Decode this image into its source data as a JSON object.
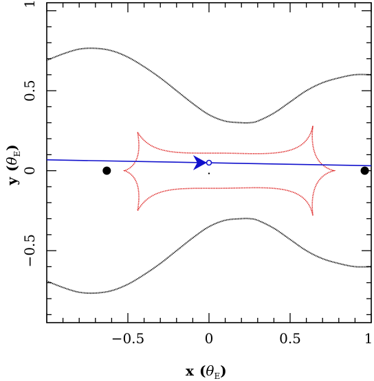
{
  "chart_data": {
    "type": "scatter",
    "xlabel": "x",
    "xlabel_unit": "θ",
    "xlabel_unit_sub": "E",
    "ylabel": "y",
    "ylabel_unit": "θ",
    "ylabel_unit_sub": "E",
    "xlim": [
      -1.0,
      1.0
    ],
    "ylim": [
      -0.95,
      1.05
    ],
    "x_ticks": [
      -0.5,
      0,
      0.5,
      1
    ],
    "x_tick_labels": [
      "−0.5",
      "0",
      "0.5",
      "1"
    ],
    "y_ticks": [
      -0.5,
      0,
      0.5,
      1
    ],
    "y_tick_labels": [
      "−0.5",
      "0",
      "0.5",
      "1"
    ],
    "grid": false,
    "critical_curve_upper": {
      "color": "#000000",
      "x": [
        -1.0,
        -0.9,
        -0.8,
        -0.7,
        -0.6,
        -0.5,
        -0.4,
        -0.3,
        -0.2,
        -0.1,
        0.0,
        0.1,
        0.2,
        0.25,
        0.3,
        0.4,
        0.5,
        0.6,
        0.7,
        0.8,
        0.9,
        1.0
      ],
      "y": [
        0.69,
        0.73,
        0.76,
        0.765,
        0.75,
        0.71,
        0.65,
        0.58,
        0.5,
        0.42,
        0.35,
        0.31,
        0.3,
        0.3,
        0.31,
        0.36,
        0.43,
        0.5,
        0.55,
        0.58,
        0.6,
        0.6
      ]
    },
    "critical_curve_lower": {
      "color": "#000000",
      "x": [
        -1.0,
        -0.9,
        -0.8,
        -0.7,
        -0.6,
        -0.5,
        -0.4,
        -0.3,
        -0.2,
        -0.1,
        0.0,
        0.1,
        0.2,
        0.25,
        0.3,
        0.4,
        0.5,
        0.6,
        0.7,
        0.8,
        0.9,
        1.0
      ],
      "y": [
        -0.69,
        -0.73,
        -0.76,
        -0.765,
        -0.75,
        -0.71,
        -0.65,
        -0.58,
        -0.5,
        -0.42,
        -0.35,
        -0.31,
        -0.3,
        -0.3,
        -0.31,
        -0.36,
        -0.43,
        -0.5,
        -0.55,
        -0.58,
        -0.6,
        -0.6
      ]
    },
    "caustic": {
      "color": "#dd2222",
      "cusps": [
        [
          -0.44,
          0.24
        ],
        [
          0.64,
          0.28
        ],
        [
          0.77,
          0.0
        ],
        [
          0.64,
          -0.28
        ],
        [
          -0.44,
          -0.25
        ],
        [
          -0.52,
          0.0
        ]
      ],
      "top_mid_y": 0.11,
      "bottom_mid_y": -0.11,
      "mid_x": 0.05
    },
    "source_trajectory": {
      "color": "#1010cc",
      "x": [
        -1.0,
        1.0
      ],
      "y": [
        0.068,
        0.031
      ],
      "arrow_at_x": -0.03
    },
    "source_marker": {
      "x": 0.0,
      "y": 0.05,
      "color": "#1010cc"
    },
    "center_dot": {
      "x": 0.0,
      "y": 0.0
    },
    "lens_masses": [
      {
        "x": -0.63,
        "y": 0.0
      },
      {
        "x": 0.96,
        "y": 0.0
      }
    ]
  }
}
